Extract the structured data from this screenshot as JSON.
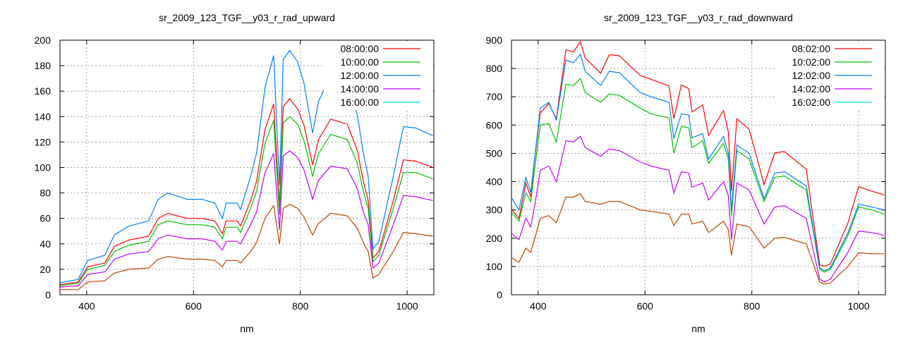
{
  "chart_data": [
    {
      "type": "line",
      "title": "sr_2009_123_TGF__y03_r_rad_upward",
      "xlabel": "nm",
      "ylabel": "",
      "xlim": [
        350,
        1050
      ],
      "ylim": [
        0,
        200
      ],
      "xticks": [
        400,
        600,
        800,
        1000
      ],
      "yticks": [
        0,
        20,
        40,
        60,
        80,
        100,
        120,
        140,
        160,
        180,
        200
      ],
      "grid": true,
      "legend_position": "top-right",
      "x": [
        350,
        384,
        402,
        434,
        452,
        479,
        516,
        534,
        552,
        588,
        616,
        640,
        654,
        661,
        682,
        688,
        707,
        718,
        734,
        750,
        761,
        768,
        780,
        795,
        807,
        823,
        834,
        857,
        888,
        907,
        918,
        927,
        936,
        947,
        974,
        993,
        1016,
        1048
      ],
      "series": [
        {
          "name": "08:00:00",
          "color": "#ff0000",
          "legend_color": "#ff0000",
          "values": [
            8,
            10,
            22,
            25,
            38,
            43,
            46,
            60,
            64,
            60,
            60,
            58,
            48,
            58,
            58,
            54,
            74,
            89,
            130,
            150,
            69,
            148,
            154,
            146,
            133,
            102,
            122,
            138,
            134,
            113,
            89,
            74,
            29,
            34,
            74,
            106,
            105,
            100
          ]
        },
        {
          "name": "10:00:00",
          "color": "#00c000",
          "legend_color": "#00c000",
          "values": [
            7,
            9,
            20,
            23,
            34,
            39,
            42,
            55,
            58,
            55,
            55,
            53,
            44,
            53,
            53,
            49,
            68,
            81,
            119,
            137,
            63,
            135,
            140,
            134,
            121,
            93,
            111,
            126,
            122,
            103,
            81,
            68,
            26,
            31,
            68,
            96,
            96,
            91
          ]
        },
        {
          "name": "12:00:00",
          "color": "#0080ff",
          "legend_color": "#0080ff",
          "values": [
            9.5,
            12,
            27,
            31,
            47,
            54,
            58,
            75,
            80,
            75,
            75,
            72,
            60,
            72,
            72,
            67,
            93,
            111,
            163,
            188,
            86,
            185,
            192,
            183,
            166,
            127,
            152,
            172,
            167,
            141,
            111,
            93,
            36,
            42,
            93,
            132,
            131,
            125
          ]
        },
        {
          "name": "14:00:00",
          "color": "#c000ff",
          "legend_color": "#c000ff",
          "values": [
            6,
            7,
            16,
            18,
            28,
            32,
            34,
            44,
            47,
            44,
            44,
            42,
            35,
            42,
            42,
            40,
            55,
            65,
            96,
            111,
            51,
            109,
            113,
            108,
            98,
            75,
            90,
            101,
            99,
            83,
            65,
            55,
            21,
            25,
            55,
            78,
            77,
            74
          ]
        },
        {
          "name": "16:00:00",
          "color": "#c04000",
          "legend_color": "#00e0e0",
          "values": [
            4,
            4,
            10,
            11,
            17,
            20,
            21,
            28,
            30,
            28,
            28,
            27,
            22,
            27,
            27,
            25,
            34,
            41,
            60,
            70,
            40,
            68,
            71,
            68,
            61,
            47,
            56,
            64,
            62,
            52,
            41,
            34,
            13,
            16,
            34,
            49,
            48,
            46
          ]
        }
      ]
    },
    {
      "type": "line",
      "title": "sr_2009_123_TGF__y03_r_rad_downward",
      "xlabel": "nm",
      "ylabel": "",
      "xlim": [
        350,
        1050
      ],
      "ylim": [
        0,
        900
      ],
      "xticks": [
        400,
        600,
        800,
        1000
      ],
      "yticks": [
        0,
        100,
        200,
        300,
        400,
        500,
        600,
        700,
        800,
        900
      ],
      "grid": true,
      "legend_position": "top-right",
      "x": [
        351,
        364,
        377,
        386,
        393,
        404,
        420,
        434,
        452,
        466,
        479,
        488,
        517,
        533,
        552,
        591,
        611,
        645,
        654,
        668,
        682,
        688,
        708,
        719,
        747,
        756,
        762,
        772,
        795,
        823,
        843,
        861,
        902,
        927,
        936,
        947,
        980,
        1000,
        1025,
        1048
      ],
      "series": [
        {
          "name": "08:02:00",
          "color": "#ff0000",
          "legend_color": "#ff0000",
          "values": [
            300,
            270,
            395,
            345,
            477,
            643,
            676,
            622,
            866,
            858,
            895,
            837,
            783,
            849,
            845,
            775,
            762,
            738,
            622,
            742,
            729,
            647,
            671,
            564,
            651,
            576,
            366,
            622,
            585,
            390,
            502,
            506,
            444,
            105,
            101,
            109,
            254,
            382,
            366,
            353
          ]
        },
        {
          "name": "10:02:00",
          "color": "#00c000",
          "legend_color": "#00c000",
          "values": [
            290,
            260,
            360,
            330,
            440,
            600,
            605,
            540,
            745,
            740,
            765,
            715,
            680,
            710,
            705,
            660,
            640,
            625,
            500,
            595,
            590,
            520,
            545,
            465,
            535,
            480,
            280,
            510,
            480,
            330,
            415,
            420,
            370,
            90,
            80,
            90,
            210,
            310,
            300,
            285
          ]
        },
        {
          "name": "12:02:00",
          "color": "#0080ff",
          "legend_color": "#0080ff",
          "values": [
            340,
            300,
            415,
            362,
            477,
            660,
            680,
            618,
            830,
            820,
            850,
            790,
            740,
            790,
            785,
            715,
            700,
            680,
            552,
            640,
            635,
            555,
            570,
            480,
            560,
            500,
            300,
            530,
            500,
            340,
            430,
            435,
            385,
            95,
            85,
            95,
            220,
            320,
            310,
            300
          ]
        },
        {
          "name": "14:02:00",
          "color": "#c000ff",
          "legend_color": "#c000ff",
          "values": [
            215,
            195,
            270,
            240,
            310,
            440,
            455,
            400,
            545,
            540,
            560,
            520,
            490,
            515,
            510,
            470,
            455,
            440,
            360,
            435,
            430,
            380,
            395,
            335,
            400,
            350,
            195,
            395,
            370,
            250,
            310,
            315,
            270,
            55,
            45,
            55,
            150,
            225,
            220,
            210
          ]
        },
        {
          "name": "16:02:00",
          "color": "#c04000",
          "legend_color": "#00e0e0",
          "values": [
            130,
            115,
            165,
            150,
            195,
            270,
            280,
            255,
            345,
            345,
            357,
            330,
            320,
            330,
            330,
            300,
            295,
            285,
            245,
            285,
            285,
            250,
            260,
            220,
            260,
            230,
            140,
            250,
            240,
            165,
            200,
            203,
            180,
            45,
            38,
            42,
            100,
            148,
            145,
            145
          ]
        }
      ]
    }
  ]
}
